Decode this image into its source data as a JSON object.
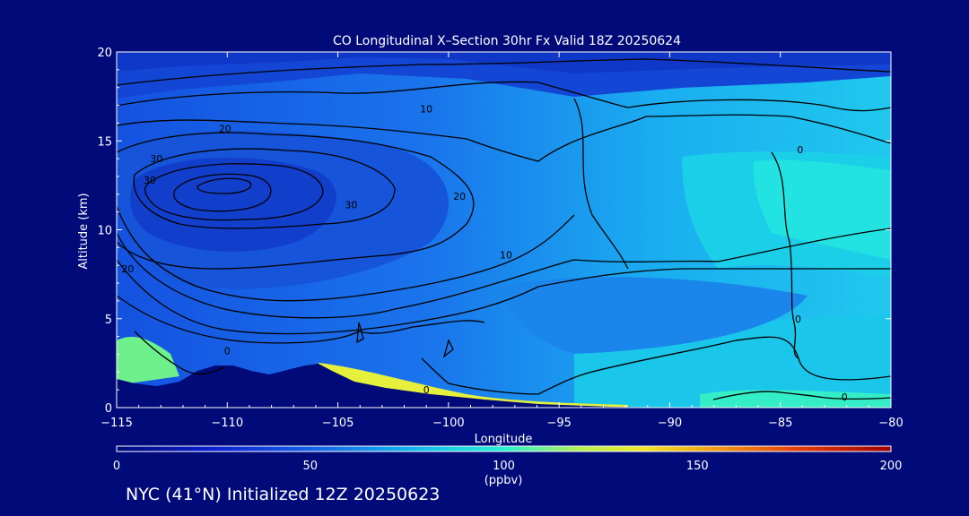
{
  "chart_data": {
    "type": "heatmap",
    "title": "CO Longitudinal X–Section 30hr  Fx Valid 18Z 20250624",
    "xlabel": "Longitude",
    "ylabel": "Altitude (km)",
    "xlim": [
      -115,
      -80
    ],
    "ylim": [
      0,
      20
    ],
    "x_ticks": [
      -115,
      -110,
      -105,
      -100,
      -95,
      -90,
      -85,
      -80
    ],
    "x_tick_labels": [
      "−115",
      "−110",
      "−105",
      "−100",
      "−95",
      "−90",
      "−85",
      "−80"
    ],
    "y_ticks": [
      0,
      5,
      10,
      15,
      20
    ],
    "colorbar": {
      "range": [
        0,
        200
      ],
      "ticks": [
        0,
        50,
        100,
        150,
        200
      ],
      "label": "(ppbv)"
    },
    "contour_labels": [
      {
        "value": "10",
        "x": -101.0,
        "y": 16.8
      },
      {
        "value": "20",
        "x": -110.1,
        "y": 15.7
      },
      {
        "value": "30",
        "x": -113.2,
        "y": 14.0
      },
      {
        "value": "30",
        "x": -113.5,
        "y": 12.8
      },
      {
        "value": "30",
        "x": -104.4,
        "y": 11.4
      },
      {
        "value": "20",
        "x": -99.5,
        "y": 11.9
      },
      {
        "value": "10",
        "x": -97.4,
        "y": 8.6
      },
      {
        "value": "20",
        "x": -114.5,
        "y": 7.8
      },
      {
        "value": "0",
        "x": -84.1,
        "y": 14.5
      },
      {
        "value": "0",
        "x": -84.2,
        "y": 5.0
      },
      {
        "value": "0",
        "x": -82.1,
        "y": 0.6
      },
      {
        "value": "0",
        "x": -101.0,
        "y": 1.0
      },
      {
        "value": "0",
        "x": -110.0,
        "y": 3.2
      }
    ],
    "contour_levels": [
      0,
      10,
      20,
      30,
      40
    ]
  },
  "footer": "NYC (41°N) Initialized 12Z 20250623"
}
